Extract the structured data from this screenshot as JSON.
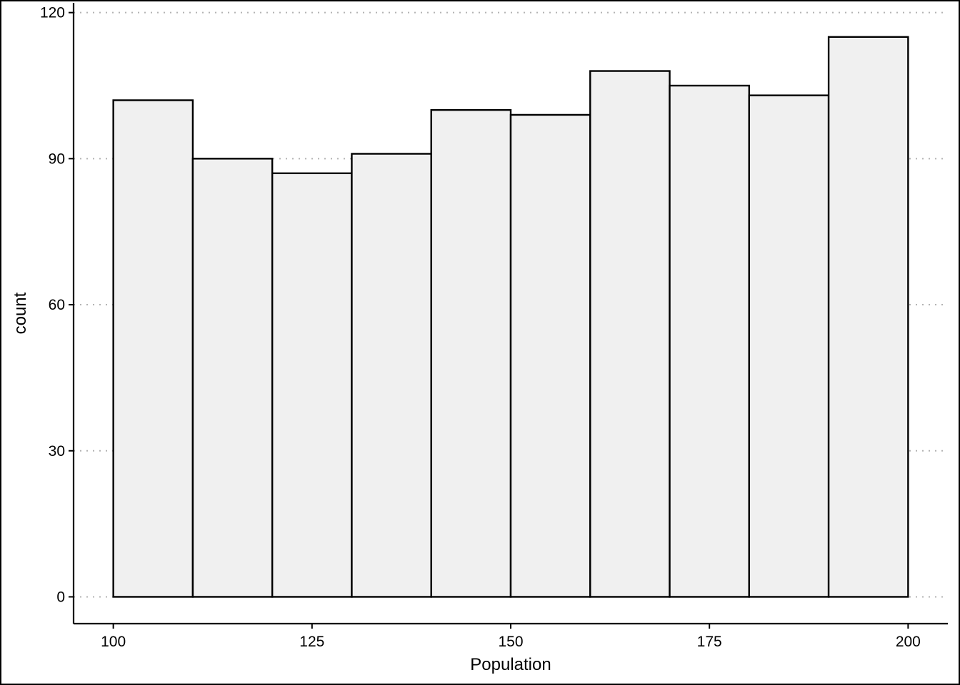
{
  "chart_data": {
    "type": "bar",
    "subtype": "histogram",
    "xlabel": "Population",
    "ylabel": "count",
    "bin_edges": [
      100,
      110,
      120,
      130,
      140,
      150,
      160,
      170,
      180,
      190,
      200
    ],
    "values": [
      102,
      90,
      87,
      91,
      100,
      99,
      108,
      105,
      103,
      115
    ],
    "xlim": [
      95,
      205
    ],
    "ylim": [
      -5.5,
      122
    ],
    "x_ticks": [
      100,
      125,
      150,
      175,
      200
    ],
    "y_ticks": [
      0,
      30,
      60,
      90,
      120
    ],
    "grid": "horizontal-dotted",
    "bar_fill": "#f0f0f0",
    "bar_stroke": "#000000",
    "grid_color": "#b3b3b3"
  }
}
